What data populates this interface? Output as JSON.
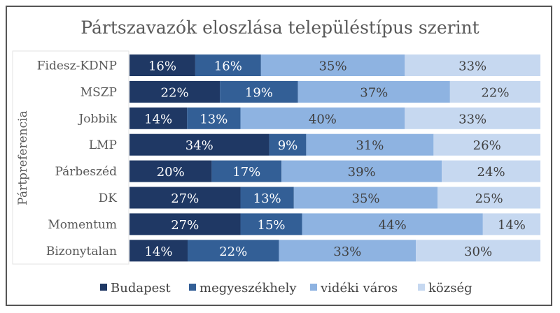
{
  "chart_data": {
    "type": "bar",
    "orientation": "horizontal",
    "stacked": true,
    "title": "Pártszavazók eloszlása településtípus szerint",
    "ylabel": "Pártpreferencia",
    "xlabel": "",
    "xlim": [
      0,
      100
    ],
    "grid": false,
    "legend_position": "bottom",
    "categories": [
      "Fidesz-KDNP",
      "MSZP",
      "Jobbik",
      "LMP",
      "Párbeszéd",
      "DK",
      "Momentum",
      "Bizonytalan"
    ],
    "series": [
      {
        "name": "Budapest",
        "color": "#1f3864",
        "label_color": "#ffffff",
        "values": [
          16,
          22,
          14,
          34,
          20,
          27,
          27,
          14
        ]
      },
      {
        "name": "megyeszékhely",
        "color": "#335f96",
        "label_color": "#ffffff",
        "values": [
          16,
          19,
          13,
          9,
          17,
          13,
          15,
          22
        ]
      },
      {
        "name": "vidéki város",
        "color": "#8eb3e1",
        "label_color": "#404040",
        "values": [
          35,
          37,
          40,
          31,
          39,
          35,
          44,
          33
        ]
      },
      {
        "name": "község",
        "color": "#c6d8f0",
        "label_color": "#404040",
        "values": [
          33,
          22,
          33,
          26,
          24,
          25,
          14,
          30
        ]
      }
    ],
    "value_suffix": "%"
  }
}
